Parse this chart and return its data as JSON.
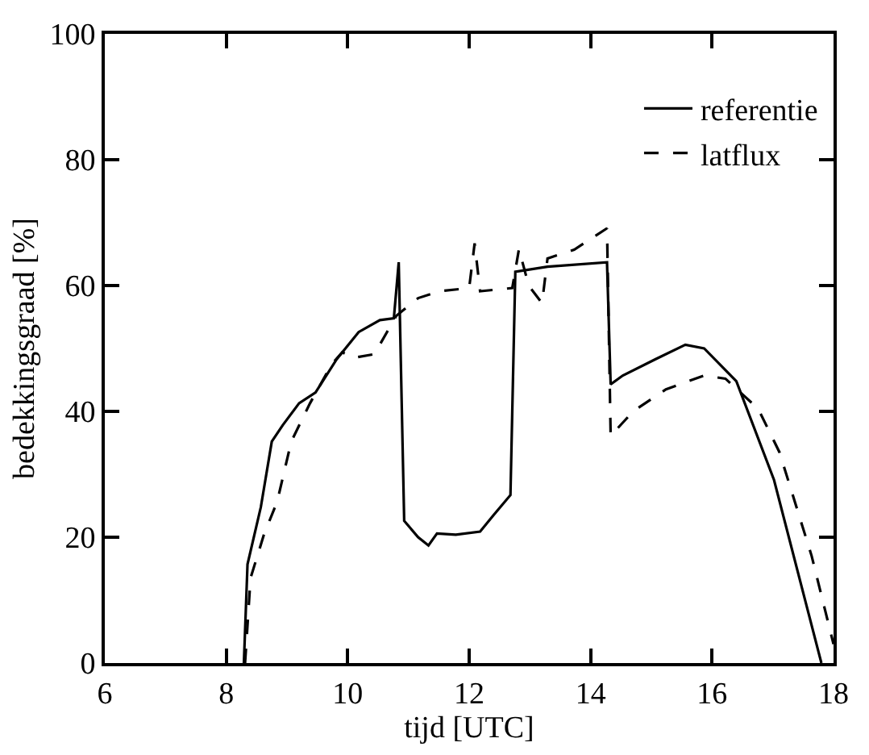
{
  "chart_data": {
    "type": "line",
    "xlabel": "tijd [UTC]",
    "ylabel": "bedekkingsgraad [%]",
    "xlim": [
      6,
      18
    ],
    "xticks": [
      6,
      8,
      10,
      12,
      14,
      16,
      18
    ],
    "ylim": [
      0,
      100
    ],
    "yticks": [
      0,
      20,
      40,
      60,
      80,
      100
    ],
    "legend": "top right",
    "marker": "none",
    "series": [
      {
        "name": "referentie",
        "color": "#000000",
        "line_style": "solid",
        "x": [
          8.29,
          8.35,
          8.57,
          8.75,
          8.93,
          9.2,
          9.47,
          9.82,
          10.18,
          10.53,
          10.76,
          10.84,
          10.93,
          11.16,
          11.33,
          11.47,
          11.78,
          12.18,
          12.4,
          12.68,
          12.76,
          13.29,
          14.27,
          14.33,
          14.53,
          15.07,
          15.56,
          15.87,
          16.4,
          17.02,
          17.8
        ],
        "values": [
          0,
          15.7,
          24.8,
          35.2,
          37.8,
          41.3,
          43,
          48.3,
          52.6,
          54.5,
          54.8,
          63.7,
          22.6,
          20,
          18.7,
          20.6,
          20.4,
          20.9,
          23.5,
          26.7,
          62.2,
          63,
          63.7,
          44.3,
          45.7,
          48.3,
          50.6,
          50,
          44.8,
          29.1,
          0
        ]
      },
      {
        "name": "latflux",
        "color": "#000000",
        "line_style": "dashed",
        "x": [
          8.31,
          8.4,
          8.62,
          8.84,
          9.07,
          9.38,
          9.73,
          9.91,
          10.09,
          10.44,
          10.8,
          11.16,
          11.51,
          12,
          12.09,
          12.18,
          12.71,
          12.82,
          12.98,
          13.2,
          13.29,
          13.73,
          14.27,
          14.33,
          14.7,
          15.24,
          15.87,
          16.22,
          16.76,
          17.11,
          17.64,
          18
        ],
        "values": [
          0,
          13.5,
          20.4,
          25.7,
          35.2,
          41.3,
          47.4,
          49.4,
          48.5,
          49.1,
          55.2,
          58,
          59.1,
          59.6,
          66.7,
          59.1,
          59.6,
          65.8,
          60,
          57.2,
          64.3,
          65.7,
          69.1,
          36.1,
          40,
          43.5,
          45.7,
          45.2,
          40.4,
          33.5,
          17,
          3
        ]
      }
    ]
  }
}
